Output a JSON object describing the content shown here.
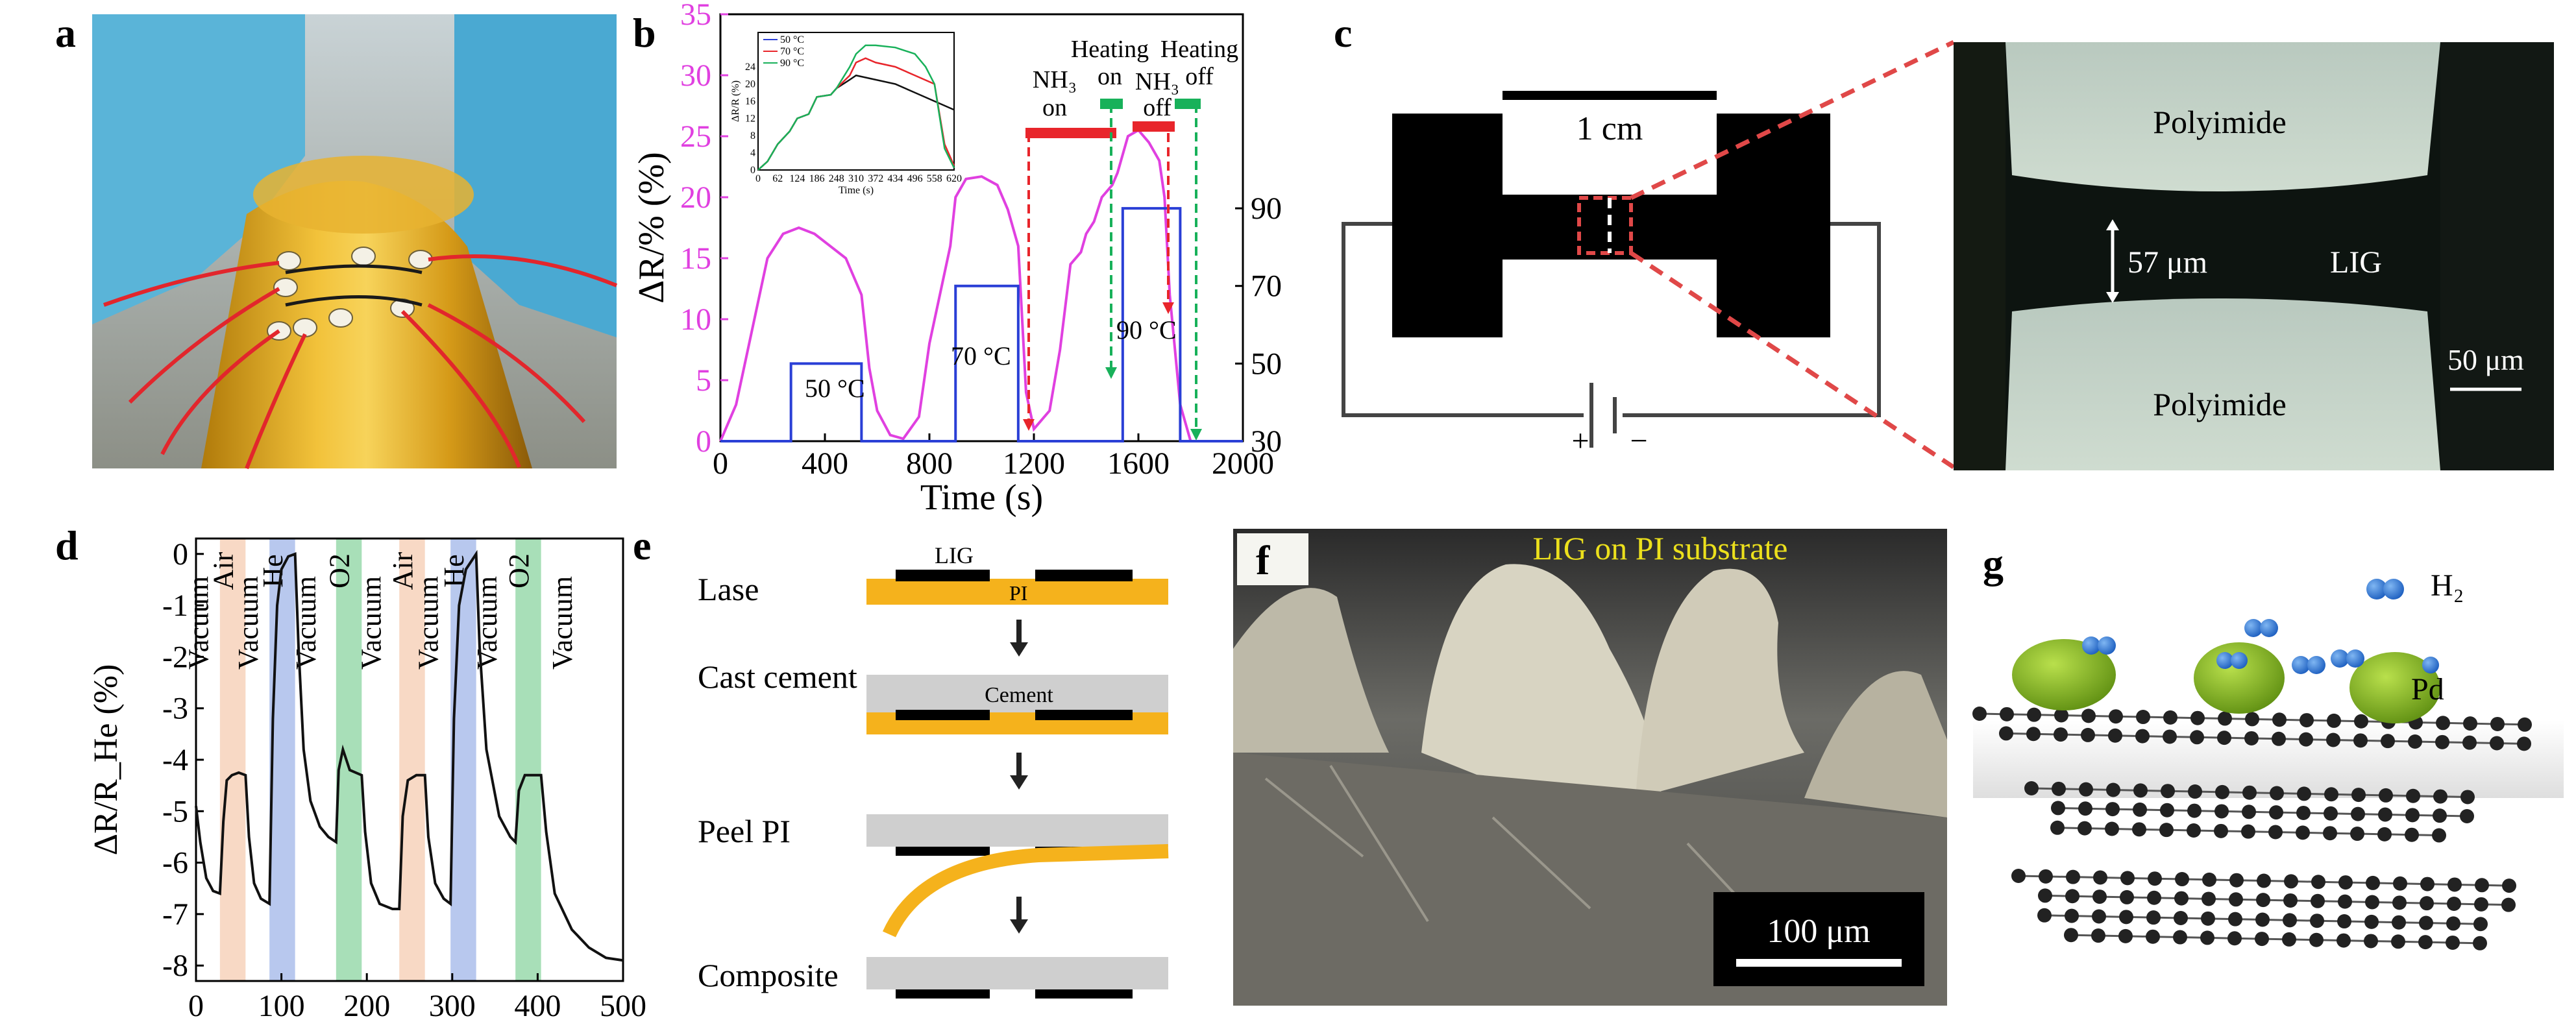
{
  "panels": {
    "a": {
      "label": "a"
    },
    "b": {
      "label": "b"
    },
    "c": {
      "label": "c",
      "scale": "1 cm",
      "lig_width": "57 μm",
      "lig": "LIG",
      "polyimide_top": "Polyimide",
      "polyimide_bottom": "Polyimide",
      "micro_scale": "50 μm",
      "plus": "+",
      "minus": "−"
    },
    "d": {
      "label": "d"
    },
    "e": {
      "label": "e",
      "steps": [
        "Lase",
        "Cast cement",
        "Peel PI",
        "Composite"
      ],
      "lig": "LIG",
      "pi": "PI",
      "cement": "Cement"
    },
    "f": {
      "label": "f",
      "caption": "LIG on PI substrate",
      "scale": "100 μm"
    },
    "g": {
      "label": "g",
      "h2": "H₂",
      "pd": "Pd"
    }
  },
  "colors": {
    "magenta": "#e040e0",
    "blue": "#2a3fd6",
    "red_bar": "#e8252b",
    "green_bar": "#18b15a",
    "air_band": "#f8d9c5",
    "he_band": "#b8c8ee",
    "o2_band": "#a8dfb8",
    "pi_orange": "#f5b21c",
    "pd_green": "#8dc22c",
    "h2_blue": "#2d78d6"
  },
  "chart_data": [
    {
      "id": "b",
      "type": "line",
      "xlabel": "Time (s)",
      "ylabel": "ΔR/% (%)",
      "xlim": [
        0,
        2000
      ],
      "ylim": [
        0,
        35
      ],
      "xticks": [
        0,
        400,
        800,
        1200,
        1600,
        2000
      ],
      "yticks": [
        0,
        5,
        10,
        15,
        20,
        25,
        30,
        35
      ],
      "y2ticks": [
        30,
        50,
        70,
        90
      ],
      "y2lim": [
        30,
        140
      ],
      "series": [
        {
          "axis": "left",
          "color": "#e040e0",
          "x": [
            0,
            60,
            120,
            180,
            240,
            300,
            360,
            420,
            480,
            540,
            570,
            600,
            650,
            700,
            760,
            800,
            840,
            880,
            900,
            940,
            1000,
            1060,
            1100,
            1140,
            1170,
            1200,
            1260,
            1300,
            1340,
            1380,
            1400,
            1430,
            1460,
            1500,
            1520,
            1560,
            1600,
            1640,
            1680,
            1700,
            1720,
            1760,
            1800,
            2000
          ],
          "y": [
            0,
            3,
            9,
            15,
            17,
            17.5,
            17,
            16,
            15,
            12,
            6,
            2.5,
            0.5,
            0.2,
            2,
            8,
            12,
            16,
            20,
            21.5,
            21.7,
            21,
            19,
            16,
            4,
            1,
            2.5,
            7.5,
            14.5,
            15.5,
            17,
            18,
            20,
            21,
            22,
            25,
            25.5,
            24.5,
            23,
            20,
            12,
            3,
            0,
            0
          ]
        },
        {
          "axis": "right",
          "color": "#2a3fd6",
          "x": [
            0,
            270,
            270,
            540,
            540,
            600,
            900,
            900,
            1140,
            1140,
            1540,
            1540,
            1760,
            1760,
            2000
          ],
          "y": [
            30,
            30,
            50,
            50,
            30,
            30,
            30,
            70,
            70,
            30,
            30,
            90,
            90,
            30,
            30
          ]
        }
      ],
      "annotations": {
        "temps": [
          "50 °C",
          "70 °C",
          "90 °C"
        ],
        "nh3_on": "NH₃ on",
        "heating_on": "Heating on",
        "nh3_off": "NH₃ off",
        "heating_off": "Heating off"
      },
      "inset": {
        "xlabel": "Time (s)",
        "ylabel": "ΔR/R (%)",
        "xticks": [
          0,
          62,
          124,
          186,
          248,
          310,
          372,
          434,
          496,
          558,
          620
        ],
        "yticks": [
          0,
          4,
          8,
          12,
          16,
          20,
          24
        ],
        "legend": [
          "50 °C",
          "70 °C",
          "90 °C"
        ],
        "series_colors": [
          "#2a3fd6",
          "#e8252b",
          "#18b15a"
        ],
        "black": {
          "x": [
            0,
            30,
            62,
            100,
            124,
            160,
            186,
            230,
            248,
            290,
            310,
            372,
            434,
            496,
            558,
            620
          ],
          "y": [
            0,
            2,
            6,
            9,
            12,
            13,
            17,
            17.5,
            19,
            21,
            22,
            21,
            20,
            18,
            16,
            14
          ]
        },
        "red": {
          "x": [
            0,
            30,
            62,
            100,
            124,
            160,
            186,
            230,
            248,
            290,
            310,
            340,
            372,
            434,
            496,
            558,
            590,
            620
          ],
          "y": [
            0,
            2,
            6,
            9,
            12,
            13,
            17,
            17.5,
            19,
            22,
            25,
            26,
            25,
            24,
            22,
            20,
            6,
            1
          ]
        },
        "green": {
          "x": [
            0,
            30,
            62,
            100,
            124,
            160,
            186,
            230,
            248,
            290,
            310,
            340,
            372,
            434,
            496,
            530,
            558,
            590,
            620
          ],
          "y": [
            0,
            2,
            6,
            9,
            12,
            13,
            17,
            17.5,
            19,
            24,
            27,
            29,
            29,
            28.5,
            27,
            24,
            20,
            5,
            0.5
          ]
        }
      }
    },
    {
      "id": "d",
      "type": "line",
      "xlabel": "",
      "ylabel": "ΔR/R_He (%)",
      "xlim": [
        0,
        500
      ],
      "ylim": [
        -8.3,
        0.3
      ],
      "xticks": [
        0,
        100,
        200,
        300,
        400,
        500
      ],
      "yticks": [
        0,
        -1,
        -2,
        -3,
        -4,
        -5,
        -6,
        -7,
        -8
      ],
      "bands": [
        {
          "label": "Air",
          "from": 28,
          "to": 58,
          "color": "#f8d9c5"
        },
        {
          "label": "He",
          "from": 86,
          "to": 116,
          "color": "#b8c8ee"
        },
        {
          "label": "O2",
          "from": 164,
          "to": 194,
          "color": "#a8dfb8"
        },
        {
          "label": "Air",
          "from": 238,
          "to": 268,
          "color": "#f8d9c5"
        },
        {
          "label": "He",
          "from": 298,
          "to": 328,
          "color": "#b8c8ee"
        },
        {
          "label": "O2",
          "from": 374,
          "to": 404,
          "color": "#a8dfb8"
        }
      ],
      "vacuum_labels": [
        {
          "label": "Vacuum",
          "x": 14
        },
        {
          "label": "Vacuum",
          "x": 72
        },
        {
          "label": "Vacuum",
          "x": 140
        },
        {
          "label": "Vacuum",
          "x": 216
        },
        {
          "label": "Vacuum",
          "x": 283
        },
        {
          "label": "Vacuum",
          "x": 352
        },
        {
          "label": "Vacuum",
          "x": 440
        }
      ],
      "series": [
        {
          "color": "#111111",
          "x": [
            0,
            5,
            12,
            20,
            28,
            32,
            36,
            42,
            50,
            58,
            62,
            68,
            76,
            86,
            90,
            95,
            100,
            108,
            116,
            120,
            126,
            134,
            145,
            155,
            164,
            167,
            172,
            180,
            194,
            198,
            205,
            215,
            230,
            238,
            242,
            248,
            258,
            268,
            272,
            280,
            290,
            298,
            302,
            308,
            316,
            328,
            332,
            340,
            355,
            368,
            374,
            378,
            385,
            395,
            404,
            410,
            420,
            440,
            460,
            480,
            500
          ],
          "y": [
            -4.9,
            -5.6,
            -6.3,
            -6.55,
            -6.6,
            -5.2,
            -4.4,
            -4.3,
            -4.25,
            -4.3,
            -5.5,
            -6.4,
            -6.7,
            -6.8,
            -3.2,
            -1.0,
            -0.3,
            -0.05,
            0,
            -1.8,
            -3.8,
            -4.8,
            -5.3,
            -5.5,
            -5.6,
            -4.2,
            -3.8,
            -4.2,
            -4.3,
            -5.4,
            -6.4,
            -6.8,
            -6.9,
            -6.9,
            -5.1,
            -4.4,
            -4.3,
            -4.3,
            -5.5,
            -6.4,
            -6.7,
            -6.8,
            -3.2,
            -1.0,
            -0.3,
            0,
            -1.8,
            -3.8,
            -5.1,
            -5.5,
            -5.6,
            -4.6,
            -4.3,
            -4.3,
            -4.3,
            -5.4,
            -6.6,
            -7.3,
            -7.65,
            -7.85,
            -7.9
          ]
        }
      ]
    }
  ]
}
